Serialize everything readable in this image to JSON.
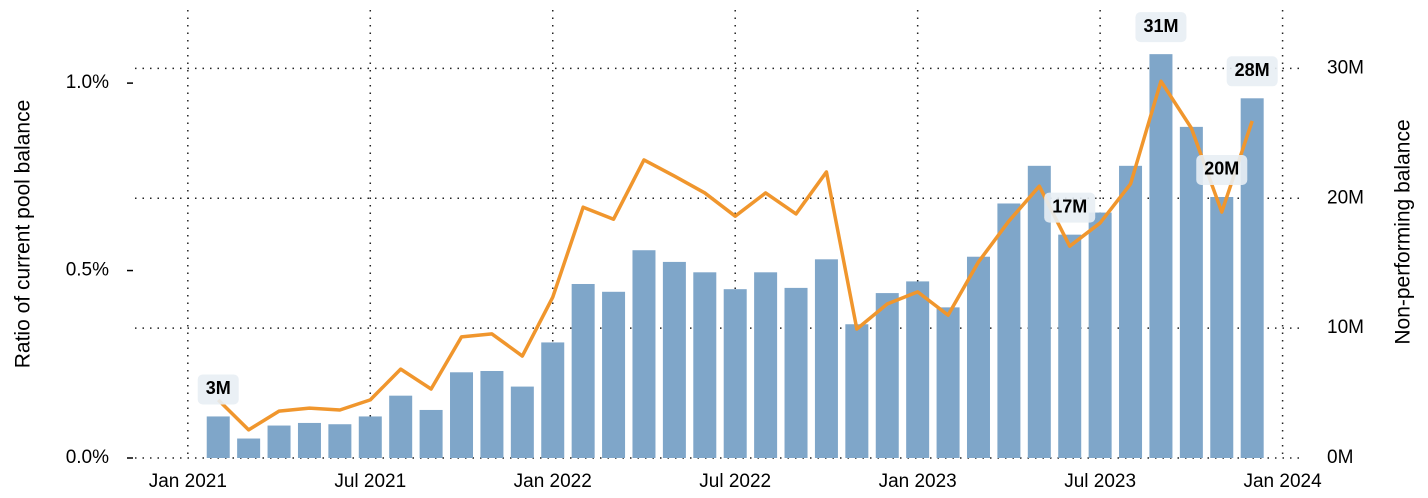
{
  "chart_data": {
    "type": "combo",
    "y_label": "Ratio of current pool balance",
    "y2_label": "Non-performing balance",
    "x": [
      "2021-02",
      "2021-03",
      "2021-04",
      "2021-05",
      "2021-06",
      "2021-07",
      "2021-08",
      "2021-09",
      "2021-10",
      "2021-11",
      "2021-12",
      "2022-01",
      "2022-02",
      "2022-03",
      "2022-04",
      "2022-05",
      "2022-06",
      "2022-07",
      "2022-08",
      "2022-09",
      "2022-10",
      "2022-11",
      "2022-12",
      "2023-01",
      "2023-02",
      "2023-03",
      "2023-04",
      "2023-05",
      "2023-06",
      "2023-07",
      "2023-08",
      "2023-09",
      "2023-10",
      "2023-11",
      "2023-12"
    ],
    "xlim": [
      "2020-11",
      "2024-02"
    ],
    "xticks": [
      {
        "value": "2021-01",
        "label": "Jan 2021"
      },
      {
        "value": "2021-07",
        "label": "Jul 2021"
      },
      {
        "value": "2022-01",
        "label": "Jan 2022"
      },
      {
        "value": "2022-07",
        "label": "Jul 2022"
      },
      {
        "value": "2023-01",
        "label": "Jan 2023"
      },
      {
        "value": "2023-07",
        "label": "Jul 2023"
      },
      {
        "value": "2024-01",
        "label": "Jan 2024"
      }
    ],
    "ylim": [
      0,
      1.195
    ],
    "yticks": [
      {
        "value": 0,
        "label": "0.0%"
      },
      {
        "value": 0.5,
        "label": "0.5%"
      },
      {
        "value": 1,
        "label": "1.0%"
      }
    ],
    "y2lim": [
      0,
      34.5
    ],
    "y2ticks": [
      {
        "value": 0,
        "label": "0M"
      },
      {
        "value": 10,
        "label": "10M"
      },
      {
        "value": 20,
        "label": "20M"
      },
      {
        "value": 30,
        "label": "30M"
      }
    ],
    "grid": true,
    "series": [
      {
        "type": "bar",
        "axis": "y2",
        "color": "#7fa6c9",
        "values": [
          3.2,
          1.5,
          2.5,
          2.7,
          2.6,
          3.2,
          4.8,
          3.7,
          6.6,
          6.7,
          5.5,
          8.9,
          13.4,
          12.8,
          16.0,
          15.1,
          14.3,
          13.0,
          14.3,
          13.1,
          15.3,
          10.3,
          12.7,
          13.6,
          11.6,
          15.5,
          19.6,
          22.5,
          17.2,
          18.9,
          22.5,
          31.1,
          25.5,
          20.1,
          27.7
        ],
        "value_labels": [
          "3M",
          null,
          null,
          null,
          null,
          null,
          null,
          null,
          null,
          null,
          null,
          null,
          null,
          null,
          null,
          null,
          null,
          null,
          null,
          null,
          null,
          null,
          null,
          null,
          null,
          null,
          null,
          null,
          "17M",
          null,
          null,
          "31M",
          null,
          "20M",
          "28M"
        ]
      },
      {
        "type": "line",
        "axis": "y",
        "color": "#f0962d",
        "values": [
          0.155,
          0.075,
          0.125,
          0.133,
          0.128,
          0.155,
          0.237,
          0.184,
          0.323,
          0.331,
          0.272,
          0.429,
          0.669,
          0.637,
          0.795,
          0.752,
          0.707,
          0.645,
          0.707,
          0.651,
          0.763,
          0.344,
          0.411,
          0.443,
          0.381,
          0.523,
          0.632,
          0.725,
          0.565,
          0.627,
          0.731,
          1.005,
          0.88,
          0.656,
          0.899
        ]
      }
    ]
  }
}
